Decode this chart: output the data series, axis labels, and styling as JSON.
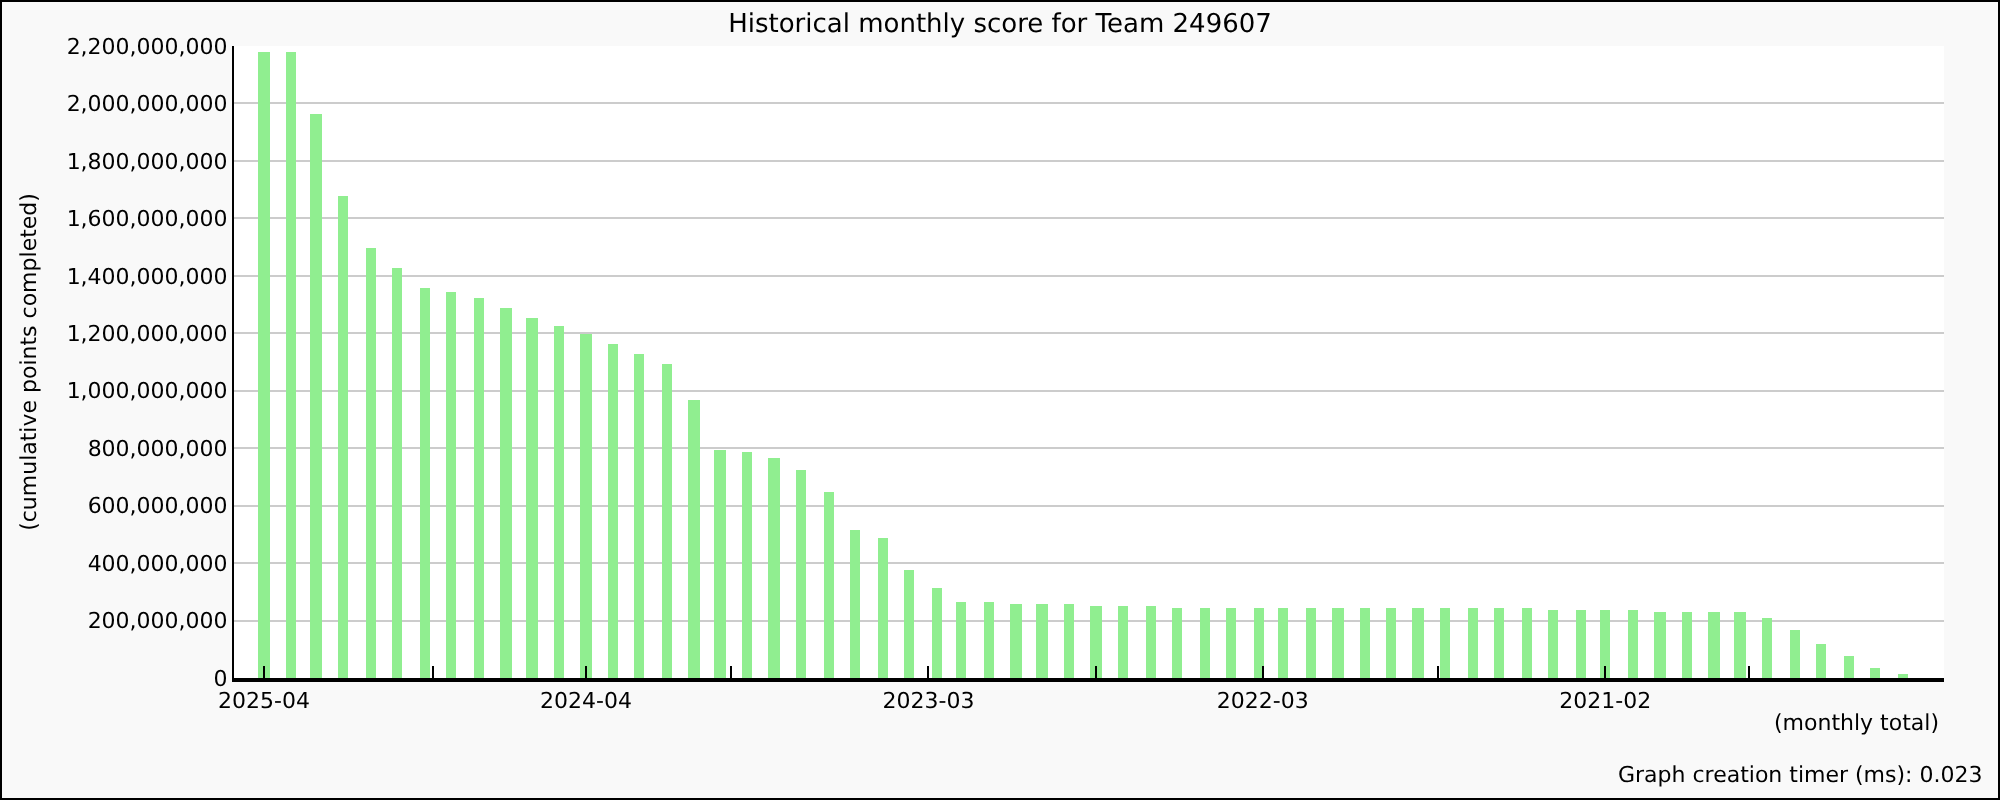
{
  "chart_data": {
    "type": "bar",
    "title": "Historical monthly score for Team 249607",
    "xlabel": "(monthly total)",
    "ylabel": "(cumulative points completed)",
    "annotations": [
      "Graph creation timer (ms): 0.023"
    ],
    "x": [
      "2025-04",
      "2025-03",
      "2025-02",
      "2025-01",
      "2024-12",
      "2024-11",
      "2024-10",
      "2024-09",
      "2024-08",
      "2024-07",
      "2024-06",
      "2024-05",
      "2024-04",
      "2024-03",
      "2024-02",
      "2024-01",
      "2023-12",
      "2023-11",
      "2023-10",
      "2023-09",
      "2023-08",
      "2023-07",
      "2023-06",
      "2023-05",
      "2023-04",
      "2023-03",
      "2023-02",
      "2023-01",
      "2022-12",
      "2022-11",
      "2022-10",
      "2022-09",
      "2022-08",
      "2022-07",
      "2022-06",
      "2022-05",
      "2022-04",
      "2022-03",
      "2022-02",
      "2022-01",
      "2021-12",
      "2021-11",
      "2021-10",
      "2021-09",
      "2021-08",
      "2021-07",
      "2021-06",
      "2021-05",
      "2021-04",
      "2021-03",
      "2021-02",
      "2021-01",
      "2020-12",
      "2020-11",
      "2020-10",
      "2020-09",
      "2020-08",
      "2020-07",
      "2020-06",
      "2020-05",
      "2020-04",
      "2020-03"
    ],
    "values": [
      2180000000,
      2180000000,
      1965000000,
      1675000000,
      1500000000,
      1425000000,
      1355000000,
      1345000000,
      1320000000,
      1285000000,
      1250000000,
      1222000000,
      1195000000,
      1160000000,
      1130000000,
      1090000000,
      965000000,
      795000000,
      785000000,
      765000000,
      725000000,
      645000000,
      515000000,
      485000000,
      375000000,
      315000000,
      265000000,
      265000000,
      255000000,
      255000000,
      255000000,
      250000000,
      250000000,
      250000000,
      245000000,
      245000000,
      245000000,
      245000000,
      245000000,
      245000000,
      245000000,
      245000000,
      245000000,
      245000000,
      245000000,
      245000000,
      245000000,
      245000000,
      235000000,
      235000000,
      235000000,
      235000000,
      230000000,
      230000000,
      230000000,
      230000000,
      208000000,
      166000000,
      118000000,
      76000000,
      35000000,
      7000000
    ],
    "color": "#90ee90",
    "xlim": [
      "2025-05-05",
      "2020-01-14"
    ],
    "xticks": [
      {
        "value": "2025-04-01",
        "label": "2025-04"
      },
      {
        "value": "2024-09-22",
        "label": null
      },
      {
        "value": "2024-04-01",
        "label": "2024-04"
      },
      {
        "value": "2023-10-20",
        "label": null
      },
      {
        "value": "2023-03-10",
        "label": "2023-03"
      },
      {
        "value": "2022-09-01",
        "label": null
      },
      {
        "value": "2022-02-24",
        "label": "2022-03"
      },
      {
        "value": "2021-08-10",
        "label": null
      },
      {
        "value": "2021-02-01",
        "label": "2021-02"
      },
      {
        "value": "2020-08-22",
        "label": null
      },
      {
        "value": "2020-01-14",
        "label": null
      }
    ],
    "ylim": [
      0,
      2200000000
    ],
    "yticks": [
      0,
      {
        "value": 200000000,
        "label": "200,000,000"
      },
      {
        "value": 400000000,
        "label": "400,000,000"
      },
      {
        "value": 600000000,
        "label": "600,000,000"
      },
      {
        "value": 800000000,
        "label": "800,000,000"
      },
      {
        "value": 1000000000,
        "label": "1,000,000,000"
      },
      {
        "value": 1200000000,
        "label": "1,200,000,000"
      },
      {
        "value": 1400000000,
        "label": "1,400,000,000"
      },
      {
        "value": 1600000000,
        "label": "1,600,000,000"
      },
      {
        "value": 1800000000,
        "label": "1,800,000,000"
      },
      {
        "value": 2000000000,
        "label": "2,000,000,000"
      },
      {
        "value": 2200000000,
        "label": "2,200,000,000"
      }
    ],
    "grid": "y"
  }
}
